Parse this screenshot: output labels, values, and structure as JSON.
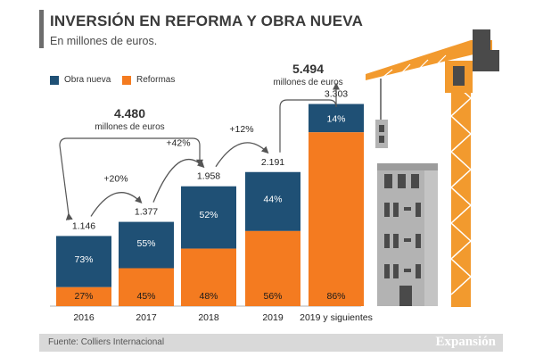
{
  "header": {
    "title": "INVERSIÓN EN REFORMA Y OBRA NUEVA",
    "subtitle": "En millones de euros."
  },
  "footer": {
    "source": "Fuente: Colliers Internacional",
    "brand": "Expansión"
  },
  "colors": {
    "obra_nueva": "#1f5075",
    "reformas": "#f47b20",
    "crane": "#f29a2e",
    "building": "#a9a9a9",
    "arrow": "#555555"
  },
  "chart_data": {
    "type": "bar",
    "stacked": true,
    "title": "INVERSIÓN EN REFORMA Y OBRA NUEVA",
    "subtitle": "En millones de euros.",
    "categories": [
      "2016",
      "2017",
      "2018",
      "2019",
      "2019 y siguientes"
    ],
    "totals": [
      1146,
      1377,
      1958,
      2191,
      3303
    ],
    "total_labels": [
      "1.146",
      "1.377",
      "1.958",
      "2.191",
      "3.303"
    ],
    "series": [
      {
        "name": "Obra nueva",
        "percent": [
          73,
          55,
          52,
          44,
          14
        ],
        "labels": [
          "73%",
          "55%",
          "52%",
          "44%",
          "14%"
        ]
      },
      {
        "name": "Reformas",
        "percent": [
          27,
          45,
          48,
          56,
          86
        ],
        "labels": [
          "27%",
          "45%",
          "48%",
          "56%",
          "86%"
        ]
      }
    ],
    "growth": [
      {
        "from": "2016",
        "to": "2017",
        "label": "+20%"
      },
      {
        "from": "2017",
        "to": "2018",
        "label": "+42%"
      },
      {
        "from": "2018",
        "to": "2019",
        "label": "+12%"
      }
    ],
    "annotations": [
      {
        "value": "4.480",
        "unit": "millones de euros",
        "spans": [
          "2016",
          "2017",
          "2018"
        ]
      },
      {
        "value": "5.494",
        "unit": "millones de euros",
        "spans": [
          "2019",
          "2019 y siguientes"
        ]
      }
    ],
    "ylim": [
      0,
      3500
    ],
    "legend_position": "top-left"
  }
}
